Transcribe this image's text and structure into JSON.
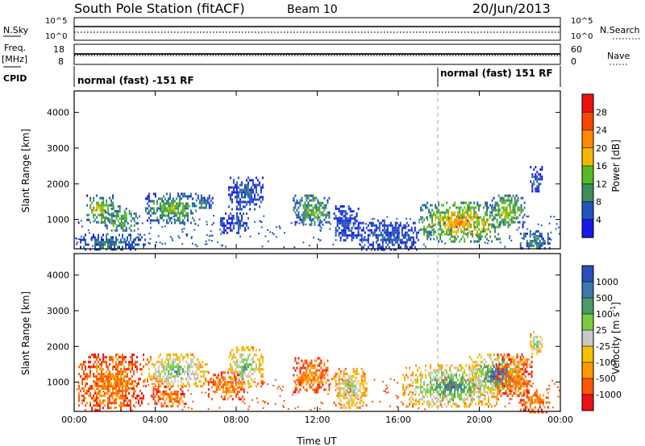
{
  "header": {
    "station": "South Pole Station (fitACF)",
    "beam": "Beam 10",
    "date": "20/Jun/2013"
  },
  "top_panels": {
    "nsky_label": "N.Sky",
    "nsky_ticks": [
      "10^5",
      "10^0"
    ],
    "nsearch_label": "N.Search",
    "nsearch_ticks": [
      "10^5",
      "10^0"
    ],
    "freq_label_line1": "Freq.",
    "freq_label_line2": "[MHz]",
    "freq_ticks": [
      "18",
      "8"
    ],
    "nave_label": "Nave",
    "nave_ticks": [
      "60",
      "0"
    ],
    "cpid_label": "CPID",
    "cpid_segments": [
      {
        "start_hour": 0,
        "text": "normal (fast) -151 RF"
      },
      {
        "start_hour": 18,
        "text": "normal (fast) 151 RF"
      }
    ]
  },
  "power_colorbar": {
    "label": "Power [dB]",
    "ticks": [
      "28",
      "24",
      "20",
      "16",
      "12",
      "8",
      "4"
    ],
    "colors": [
      "#ee1111",
      "#ff4400",
      "#ff8a00",
      "#f2b800",
      "#55bb22",
      "#3c8f56",
      "#2255bb",
      "#1818ee"
    ]
  },
  "velocity_colorbar": {
    "label": "Velocity [m s^-1]",
    "ticks": [
      "1000",
      "500",
      "100",
      "25",
      "-25",
      "-100",
      "-500",
      "-1000"
    ],
    "colors": [
      "#2a4fb8",
      "#3a7aaa",
      "#4a9a6a",
      "#7acc44",
      "#c8c8c8",
      "#f2c200",
      "#ff9900",
      "#ff5500",
      "#ee1111"
    ]
  },
  "chart_data": [
    {
      "type": "heatmap",
      "title": "",
      "xlabel": "",
      "ylabel": "Slant Range [km]",
      "xlim": [
        0,
        24
      ],
      "ylim": [
        180,
        4600
      ],
      "yticks": [
        "1000",
        "2000",
        "3000",
        "4000"
      ],
      "xticks": [
        "00:00",
        "04:00",
        "08:00",
        "12:00",
        "16:00",
        "20:00",
        "00:00"
      ],
      "value_label": "Power [dB]",
      "blobs": [
        {
          "t": [
            0.6,
            1.9
          ],
          "r": [
            900,
            1700
          ],
          "level": 4
        },
        {
          "t": [
            1.5,
            3.1
          ],
          "r": [
            700,
            1400
          ],
          "level": 3
        },
        {
          "t": [
            0.2,
            3.5
          ],
          "r": [
            180,
            600
          ],
          "level": 2
        },
        {
          "t": [
            3.5,
            6.0
          ],
          "r": [
            900,
            1750
          ],
          "level": 3
        },
        {
          "t": [
            6.0,
            6.8
          ],
          "r": [
            1300,
            1700
          ],
          "level": 2
        },
        {
          "t": [
            7.2,
            8.6
          ],
          "r": [
            600,
            1200
          ],
          "level": 1
        },
        {
          "t": [
            7.6,
            9.3
          ],
          "r": [
            1300,
            2200
          ],
          "level": 1
        },
        {
          "t": [
            10.8,
            12.6
          ],
          "r": [
            850,
            1700
          ],
          "level": 3
        },
        {
          "t": [
            12.8,
            14.0
          ],
          "r": [
            400,
            1400
          ],
          "level": 1
        },
        {
          "t": [
            14.0,
            17.0
          ],
          "r": [
            180,
            1000
          ],
          "level": 1
        },
        {
          "t": [
            17.0,
            21.0
          ],
          "r": [
            400,
            1500
          ],
          "level": 5
        },
        {
          "t": [
            20.6,
            22.2
          ],
          "r": [
            800,
            1700
          ],
          "level": 4
        },
        {
          "t": [
            22.0,
            23.5
          ],
          "r": [
            180,
            700
          ],
          "level": 2
        },
        {
          "t": [
            22.5,
            23.1
          ],
          "r": [
            1800,
            2500
          ],
          "level": 1
        }
      ]
    },
    {
      "type": "heatmap",
      "title": "",
      "xlabel": "Time UT",
      "ylabel": "Slant Range [km]",
      "xlim": [
        0,
        24
      ],
      "ylim": [
        180,
        4600
      ],
      "yticks": [
        "1000",
        "2000",
        "3000",
        "4000"
      ],
      "xticks": [
        "00:00",
        "04:00",
        "08:00",
        "12:00",
        "16:00",
        "20:00",
        "00:00"
      ],
      "value_label": "Velocity [m s^-1]",
      "blobs": [
        {
          "t": [
            0.2,
            3.4
          ],
          "r": [
            200,
            1800
          ],
          "level": 2
        },
        {
          "t": [
            3.5,
            6.6
          ],
          "r": [
            900,
            1800
          ],
          "level": 6
        },
        {
          "t": [
            3.8,
            5.5
          ],
          "r": [
            300,
            900
          ],
          "level": 2
        },
        {
          "t": [
            6.6,
            8.4
          ],
          "r": [
            500,
            1300
          ],
          "level": 2
        },
        {
          "t": [
            7.6,
            9.3
          ],
          "r": [
            900,
            2000
          ],
          "level": 6
        },
        {
          "t": [
            10.8,
            12.6
          ],
          "r": [
            700,
            1700
          ],
          "level": 2
        },
        {
          "t": [
            12.8,
            14.4
          ],
          "r": [
            300,
            1400
          ],
          "level": 5
        },
        {
          "t": [
            16.2,
            21.0
          ],
          "r": [
            300,
            1500
          ],
          "level": 7
        },
        {
          "t": [
            19.5,
            22.3
          ],
          "r": [
            700,
            1800
          ],
          "level": 8
        },
        {
          "t": [
            20.8,
            22.6
          ],
          "r": [
            600,
            1800
          ],
          "level": 2
        },
        {
          "t": [
            22.0,
            23.5
          ],
          "r": [
            180,
            800
          ],
          "level": 2
        },
        {
          "t": [
            22.5,
            23.1
          ],
          "r": [
            1800,
            2500
          ],
          "level": 6
        }
      ]
    }
  ]
}
